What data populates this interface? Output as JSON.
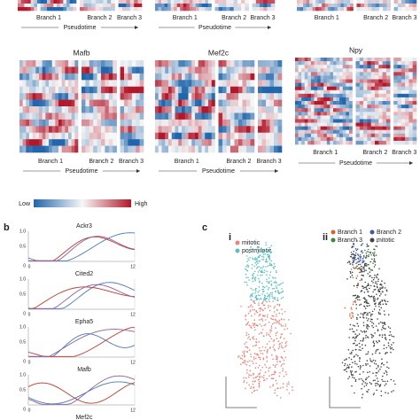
{
  "top_row": {
    "panels": [
      {
        "branches": [
          "Branch 1",
          "Branch 2",
          "Branch 3"
        ],
        "axis_label": "Pseudotime"
      },
      {
        "branches": [
          "Branch 1",
          "Branch 2",
          "Branch 3"
        ],
        "axis_label": "Pseudotime"
      },
      {
        "branches": [
          "Branch 1",
          "Branch 2",
          "Branch 3"
        ]
      }
    ]
  },
  "heatmaps": [
    {
      "gene": "Mafb",
      "branches": [
        "Branch 1",
        "Branch 2",
        "Branch 3"
      ],
      "axis_label": "Pseudotime"
    },
    {
      "gene": "Mef2c",
      "branches": [
        "Branch 1",
        "Branch 2",
        "Branch 3"
      ],
      "axis_label": "Pseudotime"
    },
    {
      "gene": "Npy",
      "branches": [
        "Branch 1",
        "Branch 2",
        "Branch 3"
      ],
      "axis_label": "Pseudotime"
    }
  ],
  "colorbar": {
    "low": "Low",
    "high": "High"
  },
  "panel_b": {
    "label": "b",
    "plots": [
      {
        "gene": "Ackr3",
        "y_ticks": [
          "1.0",
          "0.5",
          "0"
        ],
        "x_ticks": [
          "0",
          "12"
        ]
      },
      {
        "gene": "Cited2",
        "y_ticks": [
          "1.0",
          "0.5",
          "0"
        ],
        "x_ticks": [
          "0",
          "12"
        ]
      },
      {
        "gene": "Epha5",
        "y_ticks": [
          "1.0",
          "0.5",
          "0"
        ],
        "x_ticks": [
          "0",
          "12"
        ]
      },
      {
        "gene": "Mafb",
        "y_ticks": [
          "1.0",
          "0.5",
          "0"
        ],
        "x_ticks": [
          "0",
          "12"
        ]
      },
      {
        "gene": "Mef2c"
      }
    ]
  },
  "panel_c": {
    "label": "c",
    "subpanels": [
      {
        "label": "i",
        "legend": [
          "mitotic",
          "postmitotic"
        ]
      },
      {
        "label": "ii",
        "legend": [
          "Branch 1",
          "Branch 2",
          "Branch 3",
          "mitotic"
        ]
      }
    ]
  }
}
